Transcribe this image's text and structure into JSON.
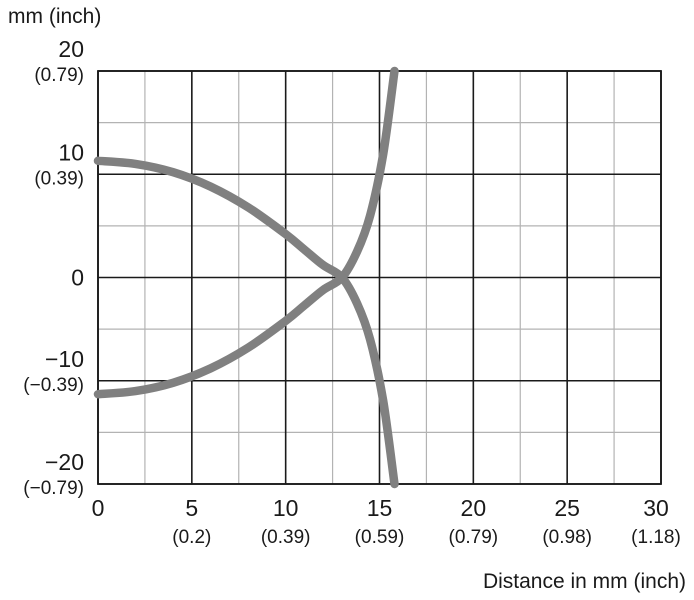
{
  "chart_data": {
    "type": "line",
    "ylabel": "mm (inch)",
    "xlabel": "Distance in mm (inch)",
    "xlim": [
      0,
      30
    ],
    "ylim": [
      -20,
      20
    ],
    "grid": true,
    "x_ticks": [
      {
        "value": 0,
        "label": "0",
        "sub": ""
      },
      {
        "value": 5,
        "label": "5",
        "sub": "(0.2)"
      },
      {
        "value": 10,
        "label": "10",
        "sub": "(0.39)"
      },
      {
        "value": 15,
        "label": "15",
        "sub": "(0.59)"
      },
      {
        "value": 20,
        "label": "20",
        "sub": "(0.79)"
      },
      {
        "value": 25,
        "label": "25",
        "sub": "(0.98)"
      },
      {
        "value": 30,
        "label": "30",
        "sub": "(1.18)"
      }
    ],
    "y_ticks": [
      {
        "value": 20,
        "label": "20",
        "sub": "(0.79)"
      },
      {
        "value": 10,
        "label": "10",
        "sub": "(0.39)"
      },
      {
        "value": 0,
        "label": "0",
        "sub": ""
      },
      {
        "value": -10,
        "label": "−10",
        "sub": "(−0.39)"
      },
      {
        "value": -20,
        "label": "−20",
        "sub": "(−0.79)"
      }
    ],
    "line_color": "#808080",
    "series": [
      {
        "x": [
          0,
          2,
          4,
          6,
          8,
          10,
          11,
          12,
          13,
          13.8,
          14.5,
          15.2,
          15.8
        ],
        "y": [
          11.3,
          11.0,
          10.2,
          8.8,
          6.8,
          4.2,
          2.7,
          1.2,
          0,
          -2.5,
          -6.0,
          -12.0,
          -20.0
        ]
      },
      {
        "x": [
          0,
          2,
          4,
          6,
          8,
          10,
          11,
          12,
          13,
          13.8,
          14.5,
          15.2,
          15.8
        ],
        "y": [
          -11.3,
          -11.0,
          -10.2,
          -8.8,
          -6.8,
          -4.2,
          -2.7,
          -1.2,
          0,
          2.5,
          6.0,
          12.0,
          20.0
        ]
      }
    ]
  }
}
